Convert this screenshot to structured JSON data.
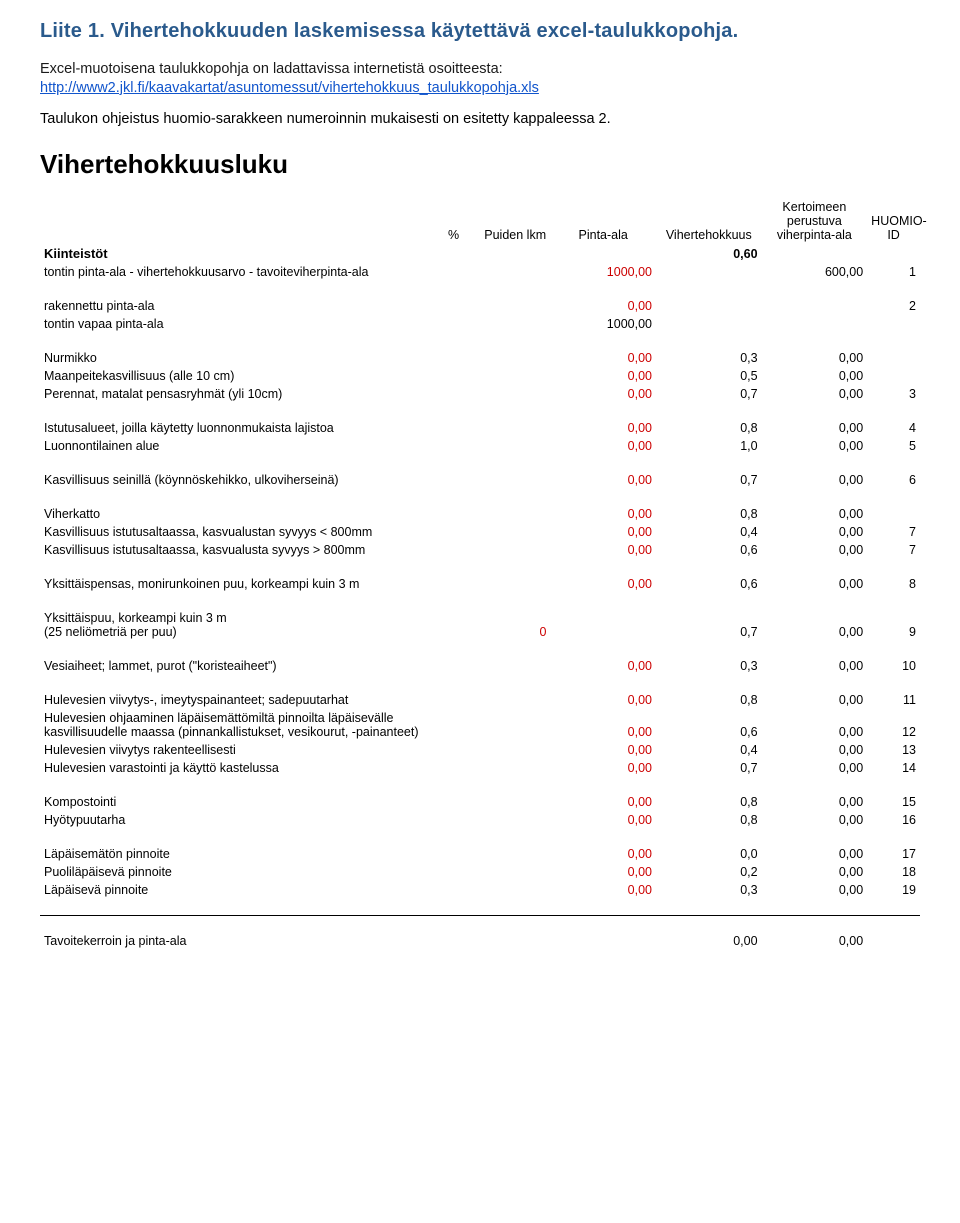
{
  "header": {
    "title": "Liite 1. Vihertehokkuuden laskemisessa käytettävä excel-taulukkopohja.",
    "intro": "Excel-muotoisena taulukkopohja on ladattavissa internetistä osoitteesta:",
    "link": "http://www2.jkl.fi/kaavakartat/asuntomessut/vihertehokkuus_taulukkopohja.xls",
    "desc": "Taulukon ohjeistus huomio-sarakkeen numeroinnin mukaisesti on esitetty kappaleessa 2.",
    "big": "Vihertehokkuusluku"
  },
  "columns": {
    "pct": "%",
    "lkm": "Puiden lkm",
    "pinta": "Pinta-ala",
    "viher": "Vihertehokkuus",
    "viherp": "Kertoimeen perustuva viherpinta-ala",
    "id": "HUOMIO-ID"
  },
  "kiinteistot": {
    "label": "Kiinteistöt",
    "viher": "0,60"
  },
  "rows": [
    {
      "label": "tontin pinta-ala - vihertehokkuusarvo - tavoiteviherpinta-ala",
      "pinta": "1000,00",
      "pinta_red": true,
      "viherp": "600,00",
      "id": "1"
    },
    {
      "spacer": true
    },
    {
      "label": "rakennettu pinta-ala",
      "pinta": "0,00",
      "pinta_red": true,
      "id": "2"
    },
    {
      "label": "tontin vapaa pinta-ala",
      "pinta": "1000,00"
    },
    {
      "spacer": true
    },
    {
      "label": "Nurmikko",
      "pinta": "0,00",
      "pinta_red": true,
      "viher": "0,3",
      "viherp": "0,00"
    },
    {
      "label": "Maanpeitekasvillisuus (alle 10 cm)",
      "pinta": "0,00",
      "pinta_red": true,
      "viher": "0,5",
      "viherp": "0,00"
    },
    {
      "label": "Perennat, matalat pensasryhmät (yli 10cm)",
      "pinta": "0,00",
      "pinta_red": true,
      "viher": "0,7",
      "viherp": "0,00",
      "id": "3"
    },
    {
      "spacer": true
    },
    {
      "label": "Istutusalueet, joilla käytetty luonnonmukaista lajistoa",
      "pinta": "0,00",
      "pinta_red": true,
      "viher": "0,8",
      "viherp": "0,00",
      "id": "4"
    },
    {
      "label": "Luonnontilainen alue",
      "pinta": "0,00",
      "pinta_red": true,
      "viher": "1,0",
      "viherp": "0,00",
      "id": "5"
    },
    {
      "spacer": true
    },
    {
      "label": "Kasvillisuus seinillä (köynnöskehikko, ulkoviherseinä)",
      "pinta": "0,00",
      "pinta_red": true,
      "viher": "0,7",
      "viherp": "0,00",
      "id": "6"
    },
    {
      "spacer": true
    },
    {
      "label": "Viherkatto",
      "pinta": "0,00",
      "pinta_red": true,
      "viher": "0,8",
      "viherp": "0,00"
    },
    {
      "label": "Kasvillisuus istutusaltaassa, kasvualustan syvyys < 800mm",
      "pinta": "0,00",
      "pinta_red": true,
      "viher": "0,4",
      "viherp": "0,00",
      "id": "7"
    },
    {
      "label": "Kasvillisuus istutusaltaassa, kasvualusta syvyys > 800mm",
      "pinta": "0,00",
      "pinta_red": true,
      "viher": "0,6",
      "viherp": "0,00",
      "id": "7"
    },
    {
      "spacer": true
    },
    {
      "label": "Yksittäispensas, monirunkoinen puu, korkeampi kuin 3 m",
      "pinta": "0,00",
      "pinta_red": true,
      "viher": "0,6",
      "viherp": "0,00",
      "id": "8"
    },
    {
      "spacer": true
    },
    {
      "label": "Yksittäispuu, korkeampi kuin 3 m\n(25 neliömetriä per puu)",
      "lkm": "0",
      "lkm_red": true,
      "viher": "0,7",
      "viherp": "0,00",
      "id": "9"
    },
    {
      "spacer": true
    },
    {
      "label": "Vesiaiheet; lammet, purot (\"koristeaiheet\")",
      "pinta": "0,00",
      "pinta_red": true,
      "viher": "0,3",
      "viherp": "0,00",
      "id": "10"
    },
    {
      "spacer": true
    },
    {
      "label": "Hulevesien viivytys-, imeytyspainanteet; sadepuutarhat",
      "pinta": "0,00",
      "pinta_red": true,
      "viher": "0,8",
      "viherp": "0,00",
      "id": "11"
    },
    {
      "label": "Hulevesien ohjaaminen läpäisemättömiltä pinnoilta läpäisevälle kasvillisuudelle maassa (pinnankallistukset, vesikourut, -painanteet)",
      "pinta": "0,00",
      "pinta_red": true,
      "viher": "0,6",
      "viherp": "0,00",
      "id": "12"
    },
    {
      "label": "Hulevesien viivytys rakenteellisesti",
      "pinta": "0,00",
      "pinta_red": true,
      "viher": "0,4",
      "viherp": "0,00",
      "id": "13"
    },
    {
      "label": "Hulevesien varastointi ja käyttö kastelussa",
      "pinta": "0,00",
      "pinta_red": true,
      "viher": "0,7",
      "viherp": "0,00",
      "id": "14"
    },
    {
      "spacer": true
    },
    {
      "label": "Kompostointi",
      "pinta": "0,00",
      "pinta_red": true,
      "viher": "0,8",
      "viherp": "0,00",
      "id": "15"
    },
    {
      "label": "Hyötypuutarha",
      "pinta": "0,00",
      "pinta_red": true,
      "viher": "0,8",
      "viherp": "0,00",
      "id": "16"
    },
    {
      "spacer": true
    },
    {
      "label": "Läpäisemätön pinnoite",
      "pinta": "0,00",
      "pinta_red": true,
      "viher": "0,0",
      "viherp": "0,00",
      "id": "17"
    },
    {
      "label": "Puoliläpäisevä pinnoite",
      "pinta": "0,00",
      "pinta_red": true,
      "viher": "0,2",
      "viherp": "0,00",
      "id": "18"
    },
    {
      "label": "Läpäisevä pinnoite",
      "pinta": "0,00",
      "pinta_red": true,
      "viher": "0,3",
      "viherp": "0,00",
      "id": "19"
    }
  ],
  "footer": {
    "label": "Tavoitekerroin ja pinta-ala",
    "viher": "0,00",
    "viherp": "0,00"
  }
}
